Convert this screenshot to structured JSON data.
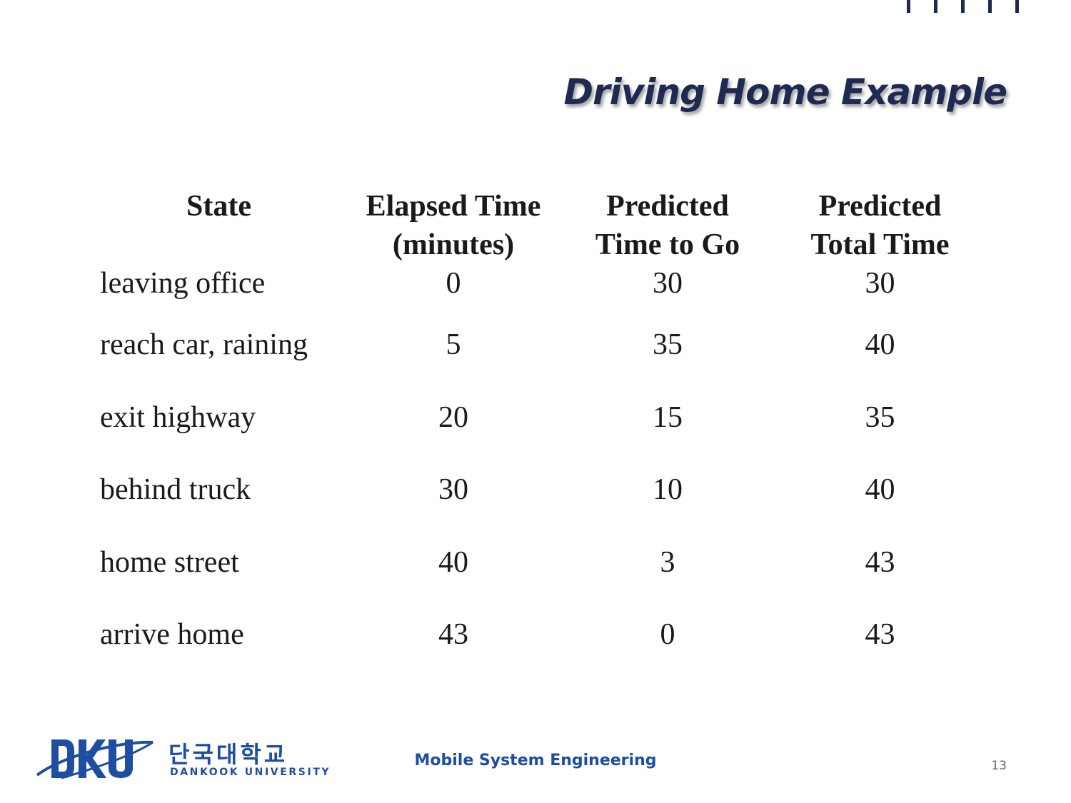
{
  "slide": {
    "title": "Driving Home Example",
    "page_number": "13"
  },
  "table": {
    "headers": [
      "State",
      "Elapsed Time\n(minutes)",
      "Predicted\nTime to Go",
      "Predicted\nTotal Time"
    ],
    "rows": [
      [
        "leaving office",
        "0",
        "30",
        "30"
      ],
      [
        "reach car, raining",
        "5",
        "35",
        "40"
      ],
      [
        "exit highway",
        "20",
        "15",
        "35"
      ],
      [
        "behind truck",
        "30",
        "10",
        "40"
      ],
      [
        "home street",
        "40",
        "3",
        "43"
      ],
      [
        "arrive home",
        "43",
        "0",
        "43"
      ]
    ]
  },
  "footer": {
    "course": "Mobile System Engineering",
    "logo": {
      "korean_name": "단국대학교",
      "english_name": "DANKOOK UNIVERSITY",
      "mark_text": "DKU",
      "color": "#1d4ea1"
    }
  },
  "colors": {
    "title": "#1f2a52",
    "accent": "#1d4ea1"
  }
}
